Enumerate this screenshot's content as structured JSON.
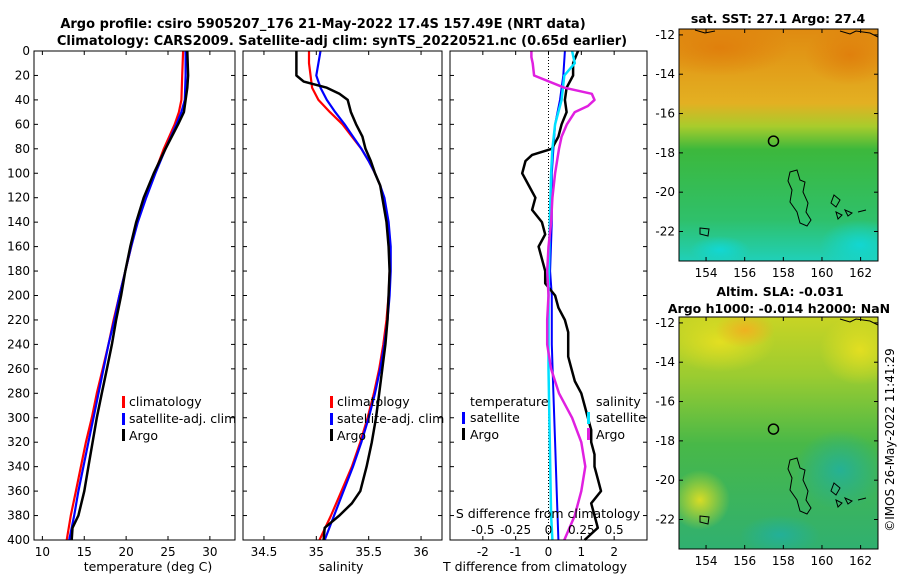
{
  "figure": {
    "title_line1": "Argo profile: csiro 5905207_176 21-May-2022 17.4S 157.49E (NRT data)",
    "title_line2": "Climatology: CARS2009. Satellite-adj clim: synTS_20220521.nc (0.65d earlier)",
    "credit": "©IMOS 26-May-2022 11:41:29",
    "colors": {
      "climatology": "#ff0000",
      "satellite": "#0000ff",
      "argo": "#000000",
      "sat_diff": "#00e0ff",
      "sal_diff": "#e020e0"
    }
  },
  "chart_data": [
    {
      "type": "line",
      "name": "temperature-profile",
      "xlabel": "temperature (deg C)",
      "ylabel": "",
      "xlim": [
        9,
        33
      ],
      "ylim": [
        400,
        0
      ],
      "xticks": [
        "10",
        "15",
        "20",
        "25",
        "30"
      ],
      "yticks": [
        "0",
        "20",
        "40",
        "60",
        "80",
        "100",
        "120",
        "140",
        "160",
        "180",
        "200",
        "220",
        "240",
        "260",
        "280",
        "300",
        "320",
        "340",
        "360",
        "380",
        "400"
      ],
      "legend": [
        "climatology",
        "satellite-adj. clim",
        "Argo"
      ],
      "series": [
        {
          "name": "climatology",
          "depth": [
            0,
            20,
            40,
            50,
            60,
            80,
            100,
            120,
            140,
            160,
            180,
            200,
            220,
            240,
            260,
            280,
            300,
            320,
            340,
            360,
            380,
            400
          ],
          "values": [
            26.8,
            26.7,
            26.6,
            26.3,
            25.8,
            24.5,
            23.4,
            22.3,
            21.3,
            20.6,
            19.9,
            19.2,
            18.5,
            17.9,
            17.2,
            16.5,
            15.9,
            15.2,
            14.6,
            14.0,
            13.4,
            12.9
          ]
        },
        {
          "name": "satellite-adj. clim",
          "depth": [
            0,
            20,
            40,
            50,
            60,
            80,
            100,
            120,
            140,
            160,
            180,
            200,
            220,
            240,
            260,
            280,
            300,
            320,
            340,
            360,
            380,
            400
          ],
          "values": [
            27.1,
            27.1,
            27.0,
            26.6,
            26.0,
            24.7,
            23.5,
            22.4,
            21.4,
            20.6,
            19.9,
            19.2,
            18.6,
            17.9,
            17.3,
            16.7,
            16.1,
            15.5,
            14.9,
            14.3,
            13.8,
            13.2
          ]
        },
        {
          "name": "Argo",
          "depth": [
            0,
            20,
            30,
            40,
            50,
            60,
            80,
            100,
            120,
            140,
            160,
            180,
            200,
            220,
            240,
            260,
            280,
            300,
            320,
            340,
            360,
            380,
            390,
            400
          ],
          "values": [
            27.3,
            27.4,
            27.3,
            27.1,
            26.9,
            26.2,
            24.7,
            23.3,
            22.1,
            21.2,
            20.5,
            19.9,
            19.4,
            18.8,
            18.3,
            17.7,
            17.1,
            16.5,
            16.0,
            15.5,
            15.0,
            14.3,
            13.6,
            13.5
          ]
        }
      ]
    },
    {
      "type": "line",
      "name": "salinity-profile",
      "xlabel": "salinity",
      "ylabel": "",
      "xlim": [
        34.3,
        36.2
      ],
      "ylim": [
        400,
        0
      ],
      "xticks": [
        "34.5",
        "35",
        "35.5",
        "36"
      ],
      "legend": [
        "climatology",
        "satellite-adj. clim",
        "Argo"
      ],
      "series": [
        {
          "name": "climatology",
          "depth": [
            0,
            10,
            30,
            40,
            50,
            60,
            70,
            80,
            90,
            100,
            110,
            120,
            140,
            160,
            180,
            200,
            220,
            240,
            260,
            280,
            300,
            320,
            340,
            360,
            380,
            400
          ],
          "values": [
            34.93,
            34.93,
            34.96,
            35.02,
            35.13,
            35.25,
            35.34,
            35.43,
            35.5,
            35.56,
            35.61,
            35.64,
            35.68,
            35.7,
            35.7,
            35.69,
            35.67,
            35.64,
            35.6,
            35.55,
            35.49,
            35.42,
            35.34,
            35.24,
            35.14,
            35.03
          ]
        },
        {
          "name": "satellite-adj. clim",
          "depth": [
            0,
            20,
            30,
            40,
            50,
            60,
            70,
            80,
            90,
            100,
            110,
            120,
            140,
            160,
            180,
            200,
            220,
            240,
            260,
            280,
            300,
            320,
            340,
            360,
            380,
            400
          ],
          "values": [
            35.04,
            35.0,
            35.04,
            35.1,
            35.18,
            35.27,
            35.35,
            35.43,
            35.5,
            35.56,
            35.61,
            35.65,
            35.69,
            35.71,
            35.71,
            35.7,
            35.68,
            35.65,
            35.61,
            35.56,
            35.5,
            35.43,
            35.35,
            35.26,
            35.17,
            35.08
          ]
        },
        {
          "name": "Argo",
          "depth": [
            0,
            20,
            25,
            30,
            35,
            40,
            50,
            60,
            70,
            80,
            90,
            100,
            110,
            120,
            140,
            160,
            180,
            200,
            220,
            240,
            260,
            280,
            300,
            320,
            340,
            360,
            370,
            380,
            390,
            400
          ],
          "values": [
            34.81,
            34.81,
            34.88,
            35.1,
            35.22,
            35.3,
            35.33,
            35.38,
            35.44,
            35.47,
            35.52,
            35.56,
            35.61,
            35.63,
            35.67,
            35.69,
            35.7,
            35.69,
            35.68,
            35.66,
            35.63,
            35.6,
            35.57,
            35.53,
            35.48,
            35.42,
            35.34,
            35.22,
            35.08,
            35.07
          ]
        }
      ]
    },
    {
      "type": "line",
      "name": "difference-profile",
      "xlabel": "T difference from climatology",
      "xlabel_top": "S difference from climatology",
      "ylabel": "",
      "xlim": [
        -3,
        3
      ],
      "ylim": [
        400,
        0
      ],
      "xticks": [
        "-2",
        "-1",
        "0",
        "1",
        "2"
      ],
      "xticks_top": [
        "-0.5",
        "-0.25",
        "0",
        "0.25",
        "0.5"
      ],
      "legend_left": {
        "title": "temperature",
        "items": [
          "satellite",
          "Argo"
        ]
      },
      "legend_right": {
        "title": "salinity",
        "items": [
          "satellite",
          "Argo"
        ]
      },
      "series": [
        {
          "name": "temperature satellite",
          "depth": [
            0,
            20,
            40,
            60,
            80,
            100,
            140,
            180,
            200,
            240,
            280,
            320,
            360,
            400
          ],
          "values": [
            0.5,
            0.45,
            0.35,
            0.2,
            0.15,
            0.1,
            0.1,
            0.05,
            0.1,
            0.1,
            0.15,
            0.2,
            0.25,
            0.3
          ]
        },
        {
          "name": "temperature Argo",
          "depth": [
            0,
            10,
            20,
            30,
            40,
            50,
            60,
            70,
            80,
            85,
            90,
            100,
            110,
            120,
            130,
            140,
            150,
            160,
            170,
            180,
            190,
            200,
            210,
            220,
            230,
            240,
            250,
            260,
            270,
            280,
            290,
            300,
            310,
            320,
            330,
            340,
            350,
            360,
            370,
            380,
            390,
            400
          ],
          "values": [
            0.9,
            0.75,
            0.75,
            0.55,
            0.5,
            0.55,
            0.4,
            0.3,
            0.1,
            -0.5,
            -0.7,
            -0.8,
            -0.6,
            -0.4,
            -0.5,
            -0.2,
            -0.1,
            -0.3,
            -0.2,
            -0.1,
            -0.1,
            0.2,
            0.3,
            0.5,
            0.6,
            0.6,
            0.6,
            0.7,
            0.8,
            1.0,
            1.1,
            1.2,
            1.3,
            1.3,
            1.4,
            1.4,
            1.5,
            1.6,
            1.3,
            1.4,
            1.5,
            1.1
          ]
        },
        {
          "name": "salinity satellite",
          "depth": [
            0,
            10,
            20,
            40,
            60,
            80,
            100,
            140,
            200,
            260,
            320,
            380,
            400
          ],
          "values": [
            0.18,
            0.2,
            0.12,
            0.1,
            0.05,
            0.03,
            0.02,
            0.01,
            0.0,
            0.0,
            0.01,
            0.02,
            0.03
          ]
        },
        {
          "name": "salinity Argo",
          "depth": [
            0,
            5,
            10,
            20,
            30,
            35,
            40,
            45,
            50,
            60,
            70,
            80,
            100,
            120,
            140,
            160,
            180,
            200,
            220,
            240,
            260,
            280,
            300,
            320,
            340,
            360,
            380,
            400
          ],
          "values": [
            -0.13,
            -0.13,
            -0.12,
            -0.11,
            0.12,
            0.33,
            0.35,
            0.3,
            0.2,
            0.14,
            0.1,
            0.08,
            0.05,
            0.03,
            0.02,
            0.0,
            -0.01,
            0.0,
            -0.01,
            -0.01,
            0.02,
            0.08,
            0.18,
            0.25,
            0.28,
            0.25,
            0.2,
            0.12
          ]
        }
      ]
    },
    {
      "type": "heatmap",
      "name": "sst-map",
      "title": "sat. SST: 27.1 Argo: 27.4",
      "xlim": [
        152.6,
        162.9
      ],
      "ylim": [
        -23.5,
        -11.7
      ],
      "xticks": [
        "154",
        "156",
        "158",
        "160",
        "162"
      ],
      "yticks": [
        "-12",
        "-14",
        "-16",
        "-18",
        "-20",
        "-22"
      ],
      "marker": {
        "lon": 157.49,
        "lat": -17.4
      }
    },
    {
      "type": "heatmap",
      "name": "sla-map",
      "title_line1": "Altim. SLA: -0.031",
      "title_line2": "Argo h1000: -0.014 h2000: NaN",
      "xlim": [
        152.6,
        162.9
      ],
      "ylim": [
        -23.5,
        -11.7
      ],
      "xticks": [
        "154",
        "156",
        "158",
        "160",
        "162"
      ],
      "yticks": [
        "-12",
        "-14",
        "-16",
        "-18",
        "-20",
        "-22"
      ],
      "marker": {
        "lon": 157.49,
        "lat": -17.4
      }
    }
  ]
}
